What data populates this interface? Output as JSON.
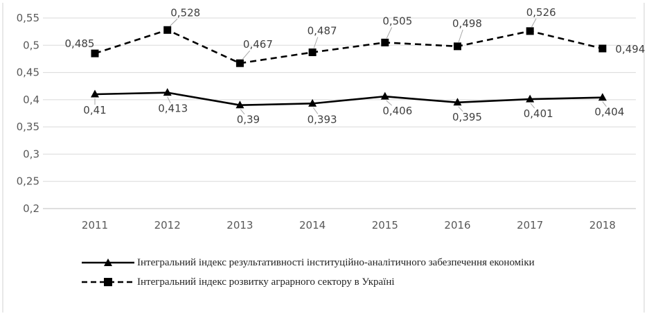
{
  "chart_data": {
    "type": "line",
    "categories": [
      "2011",
      "2012",
      "2013",
      "2014",
      "2015",
      "2016",
      "2017",
      "2018"
    ],
    "ylim": [
      0.2,
      0.55
    ],
    "yticks": [
      "0,2",
      "0,25",
      "0,3",
      "0,35",
      "0,4",
      "0,45",
      "0,5",
      "0,55"
    ],
    "grid": true,
    "legend_position": "bottom",
    "series": [
      {
        "name": "Інтегральний індекс результативності інституційно-аналітичного забезпечення економіки",
        "values": [
          0.41,
          0.413,
          0.39,
          0.393,
          0.406,
          0.395,
          0.401,
          0.404
        ],
        "labels": [
          "0,41",
          "0,413",
          "0,39",
          "0,393",
          "0,406",
          "0,395",
          "0,401",
          "0,404"
        ],
        "marker": "triangle",
        "style": "solid",
        "color": "#000000"
      },
      {
        "name": "Інтегральний індекс розвитку аграрного сектору в Україні",
        "values": [
          0.485,
          0.528,
          0.467,
          0.487,
          0.505,
          0.498,
          0.526,
          0.494
        ],
        "labels": [
          "0,485",
          "0,528",
          "0,467",
          "0,487",
          "0,505",
          "0,498",
          "0,526",
          "0,494"
        ],
        "marker": "square",
        "style": "dashed",
        "color": "#000000"
      }
    ]
  }
}
